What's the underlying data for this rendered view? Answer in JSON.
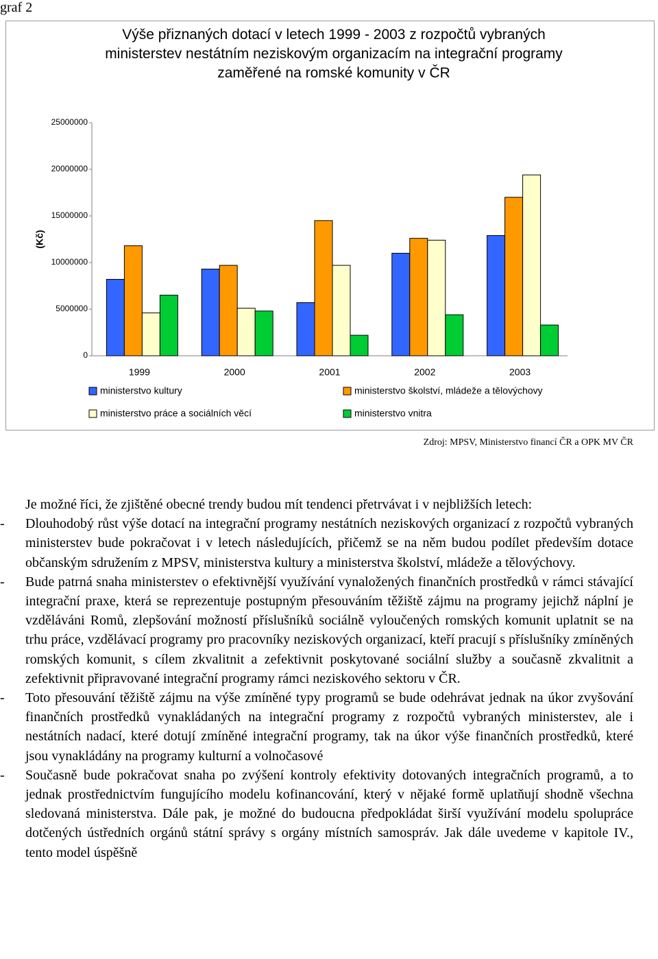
{
  "label": "graf 2",
  "chart_data": {
    "type": "bar",
    "title": "Výše přiznaných dotací v letech 1999 - 2003 z rozpočtů vybraných ministerstev nestátním neziskovým organizacím na integrační programy zaměřené na romské komunity v ČR",
    "y_label": "(Kč)",
    "categories": [
      "1999",
      "2000",
      "2001",
      "2002",
      "2003"
    ],
    "series": [
      {
        "name": "ministerstvo kultury",
        "color": "#3366ff",
        "values": [
          8200000,
          9300000,
          5700000,
          11000000,
          12900000
        ]
      },
      {
        "name": "ministerstvo školství, mládeže a tělovýchovy",
        "color": "#ff9900",
        "values": [
          11800000,
          9700000,
          14500000,
          12600000,
          17000000
        ]
      },
      {
        "name": "ministerstvo práce a sociálních věcí",
        "color": "#ffffcc",
        "values": [
          4600000,
          5100000,
          9700000,
          12400000,
          19400000
        ]
      },
      {
        "name": "ministerstvo vnitra",
        "color": "#00cc33",
        "values": [
          6500000,
          4800000,
          2200000,
          4400000,
          3300000
        ]
      }
    ],
    "ylim": [
      0,
      25000000
    ],
    "yticks": [
      0,
      5000000,
      10000000,
      15000000,
      20000000,
      25000000
    ]
  },
  "source": "Zdroj: MPSV, Ministerstvo financí ČR a OPK MV ČR",
  "intro": "Je možné říci, že zjištěné obecné trendy budou mít tendenci přetrvávat i v nejbližších letech:",
  "bullets": [
    {
      "marker": "-",
      "text": "Dlouhodobý růst výše dotací na integrační programy nestátních neziskových organizací z rozpočtů vybraných ministerstev bude pokračovat i v letech následujících, přičemž se na něm budou podílet především dotace občanským sdružením z MPSV, ministerstva kultury a ministerstva školství, mládeže a tělovýchovy."
    },
    {
      "marker": "-",
      "text": "Bude patrná snaha ministerstev o efektivnější využívání vynaložených finančních prostředků v rámci stávající integrační praxe, která se reprezentuje postupným přesouváním těžiště zájmu na programy jejichž náplní je vzděláváni Romů, zlepšování možností příslušníků sociálně vyloučených romských komunit uplatnit se na trhu práce, vzdělávací programy pro pracovníky neziskových organizací, kteří pracují s příslušníky zmíněných romských komunit, s cílem zkvalitnit a zefektivnit poskytované sociální služby a současně zkvalitnit a zefektivnit připravované integrační programy rámci neziskového sektoru v ČR."
    },
    {
      "marker": "-",
      "text": "Toto přesouvání těžiště zájmu na výše zmíněné typy programů se bude odehrávat jednak na úkor zvyšování finančních prostředků vynakládaných na integrační programy z rozpočtů vybraných ministerstev, ale i nestátních nadací, které dotují zmíněné integrační programy, tak na úkor výše finančních prostředků, které jsou vynakládány na programy kulturní a volnočasové"
    },
    {
      "marker": "-",
      "text": "Současně bude pokračovat snaha po zvýšení kontroly efektivity dotovaných integračních programů, a to jednak prostřednictvím fungujícího modelu kofinancování, který v nějaké formě uplatňují shodně všechna sledovaná ministerstva. Dále pak, je možné do budoucna předpokládat širší využívání modelu spolupráce dotčených ústředních orgánů státní správy s orgány místních samospráv. Jak dále uvedeme v kapitole IV., tento model úspěšně"
    }
  ]
}
